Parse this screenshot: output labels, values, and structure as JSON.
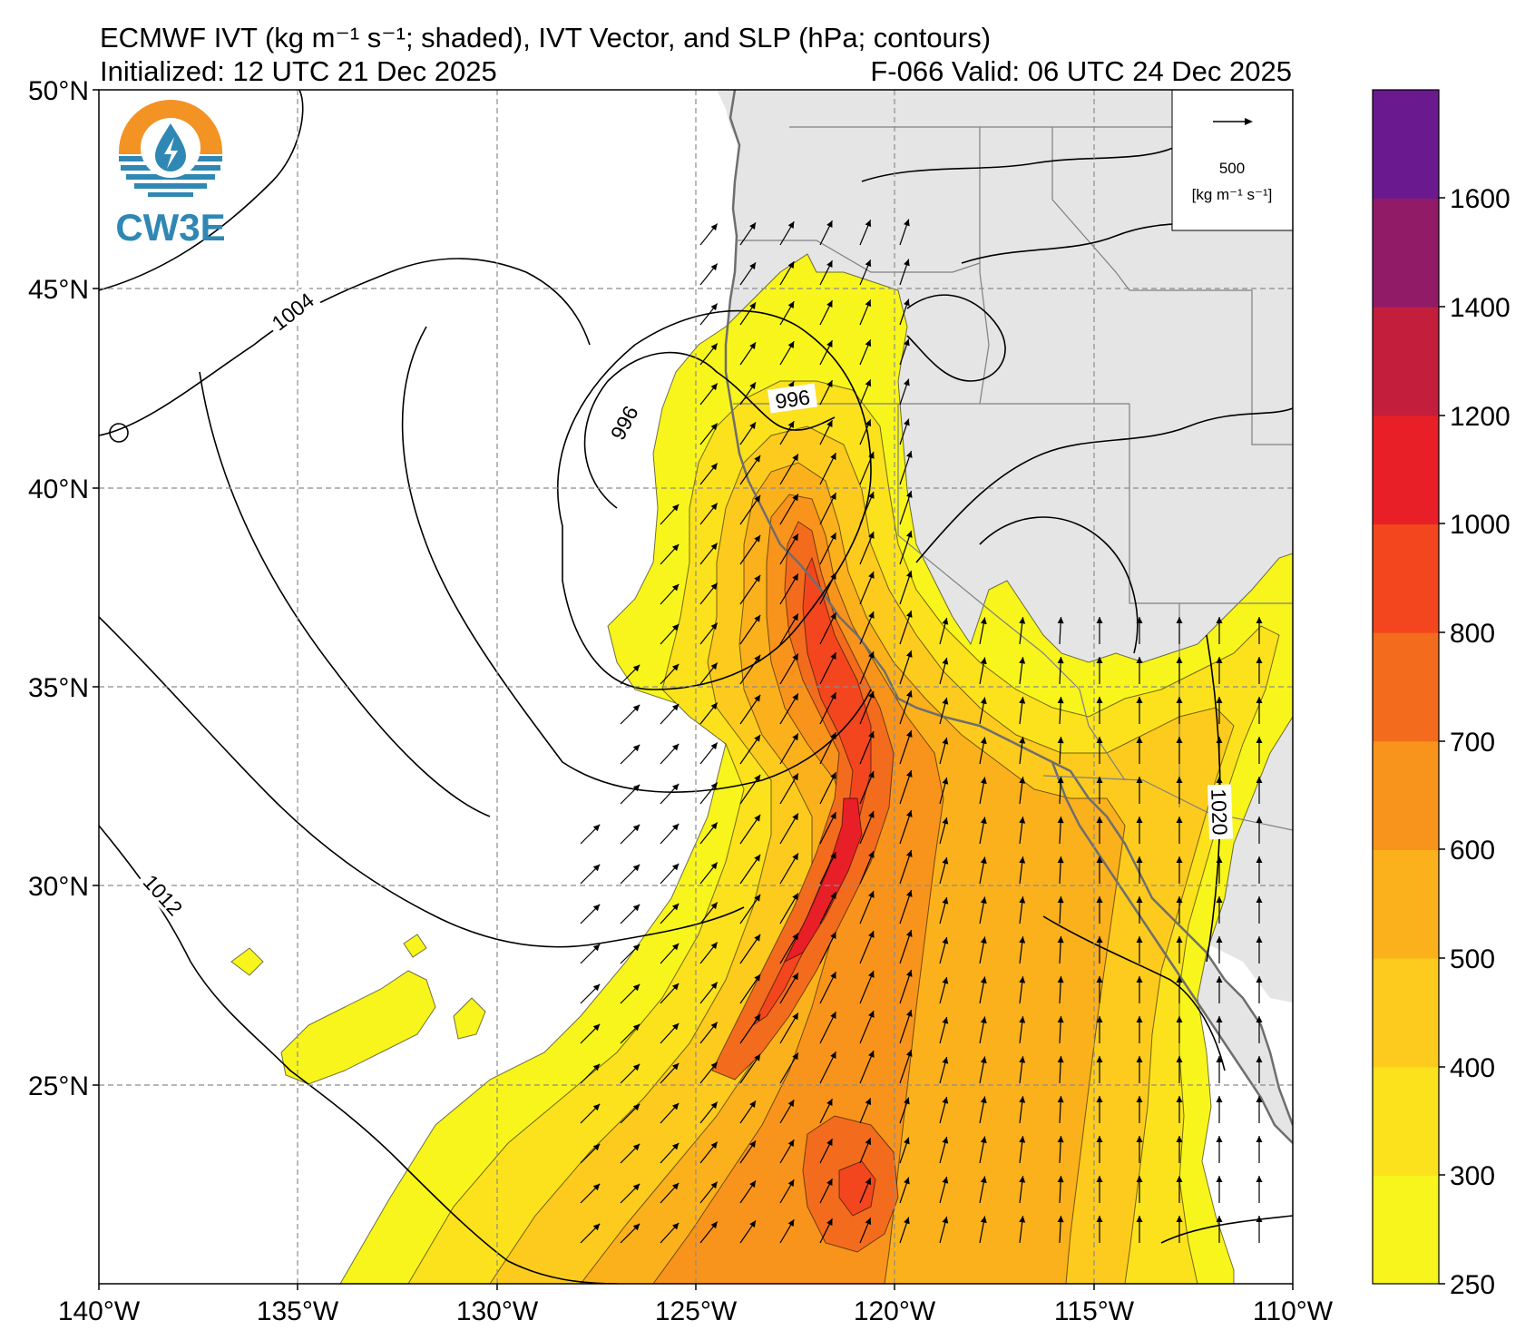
{
  "title": {
    "line1": "ECMWF IVT (kg m⁻¹ s⁻¹; shaded), IVT Vector, and SLP (hPa; contours)",
    "init": "Initialized: 12 UTC 21 Dec 2025",
    "valid": "F-066  Valid: 06 UTC 24 Dec 2025"
  },
  "logo": {
    "text": "CW3E",
    "icon": "cw3e-water-drop-icon",
    "colors": {
      "orange": "#f39324",
      "blue": "#2f87b4"
    }
  },
  "axes": {
    "lon_labels": [
      "140°W",
      "135°W",
      "130°W",
      "125°W",
      "120°W",
      "115°W",
      "110°W"
    ],
    "lat_labels": [
      "50°N",
      "45°N",
      "40°N",
      "35°N",
      "30°N",
      "25°N"
    ],
    "lon_range": [
      -140,
      -110
    ],
    "lat_range": [
      20,
      50
    ],
    "grid": true
  },
  "vector_key": {
    "value": "500",
    "units": "[kg m⁻¹ s⁻¹]"
  },
  "colorbar": {
    "tick_labels": [
      "250",
      "300",
      "400",
      "500",
      "600",
      "700",
      "800",
      "1000",
      "1200",
      "1400",
      "1600"
    ],
    "levels": [
      250,
      300,
      400,
      500,
      600,
      700,
      800,
      1000,
      1200,
      1400,
      1600,
      1800
    ],
    "colors": [
      "#f8f51c",
      "#fbe21d",
      "#fccb1d",
      "#fbb11c",
      "#f8941b",
      "#f36c1d",
      "#f3461e",
      "#e81f26",
      "#c41e3d",
      "#921b68",
      "#6a1a8e"
    ]
  },
  "contour_labels": [
    "1004",
    "996",
    "1012",
    "1020"
  ],
  "colors": {
    "land": "#e5e5e5",
    "ocean": "#ffffff",
    "coast": "#6e6e6e",
    "contour": "#000000",
    "grid": "#8c8c8c"
  }
}
